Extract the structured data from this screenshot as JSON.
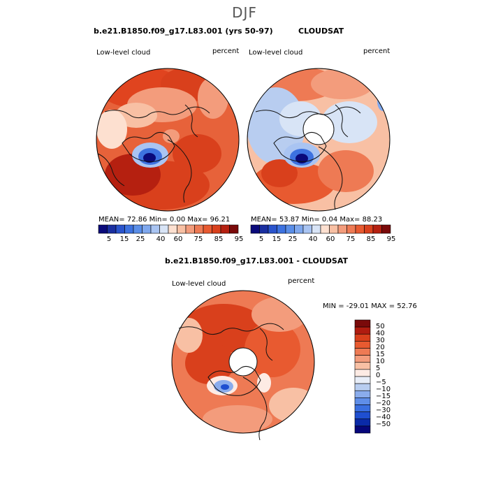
{
  "page": {
    "title": "DJF"
  },
  "chart_data": [
    {
      "type": "heatmap",
      "projection": "north-polar-stereographic",
      "title": "b.e21.B1850.f09_g17.L83.001 (yrs 50-97)",
      "left_label": "Low-level cloud",
      "right_label": "percent",
      "stats_text": "MEAN=   72.86  Min=    0.00  Max=   96.21",
      "stats": {
        "mean": 72.86,
        "min": 0.0,
        "max": 96.21
      },
      "colorbar": {
        "orientation": "horizontal",
        "levels": [
          5,
          10,
          15,
          20,
          25,
          30,
          40,
          50,
          60,
          65,
          70,
          75,
          80,
          85,
          90,
          95
        ],
        "tick_labels": [
          "5",
          "15",
          "25",
          "40",
          "60",
          "75",
          "85",
          "95"
        ]
      }
    },
    {
      "type": "heatmap",
      "projection": "north-polar-stereographic",
      "title": "CLOUDSAT",
      "left_label": "Low-level cloud",
      "right_label": "percent",
      "stats_text": "MEAN=   53.87  Min=    0.04  Max=   88.23",
      "stats": {
        "mean": 53.87,
        "min": 0.04,
        "max": 88.23
      },
      "colorbar": {
        "orientation": "horizontal",
        "levels": [
          5,
          10,
          15,
          20,
          25,
          30,
          40,
          50,
          60,
          65,
          70,
          75,
          80,
          85,
          90,
          95
        ],
        "tick_labels": [
          "5",
          "15",
          "25",
          "40",
          "60",
          "75",
          "85",
          "95"
        ]
      }
    },
    {
      "type": "heatmap",
      "projection": "north-polar-stereographic",
      "title": "b.e21.B1850.f09_g17.L83.001 - CLOUDSAT",
      "left_label": "Low-level cloud",
      "right_label": "percent",
      "stats_text": "MIN = -29.01 MAX =  52.76",
      "stats": {
        "min": -29.01,
        "max": 52.76
      },
      "colorbar": {
        "orientation": "vertical",
        "levels": [
          -50,
          -40,
          -30,
          -20,
          -15,
          -10,
          -5,
          0,
          5,
          10,
          15,
          20,
          30,
          40,
          50
        ],
        "tick_labels": [
          "50",
          "40",
          "30",
          "20",
          "15",
          "10",
          "5",
          "0",
          "−5",
          "−10",
          "−15",
          "−20",
          "−30",
          "−40",
          "−50"
        ]
      }
    }
  ],
  "colors": {
    "hbar": [
      "#0a0a7a",
      "#1a2fa0",
      "#2a54cc",
      "#3d72e0",
      "#5a8ee8",
      "#7fa8ee",
      "#a9c4f2",
      "#d8e4f6",
      "#fde0d0",
      "#f8c0a4",
      "#f39c7c",
      "#ee7a54",
      "#e85a30",
      "#d9401c",
      "#b52010",
      "#7a0a0a"
    ],
    "vbar": [
      "#7a0a0a",
      "#b01c10",
      "#d9401c",
      "#e85a30",
      "#ee7a54",
      "#f39c7c",
      "#f8c0a4",
      "#fdebe4",
      "#e8eef8",
      "#b8cdf0",
      "#8aacec",
      "#5f8ee8",
      "#3a6fe0",
      "#1f4fd0",
      "#0a2aa8",
      "#06067a"
    ]
  }
}
